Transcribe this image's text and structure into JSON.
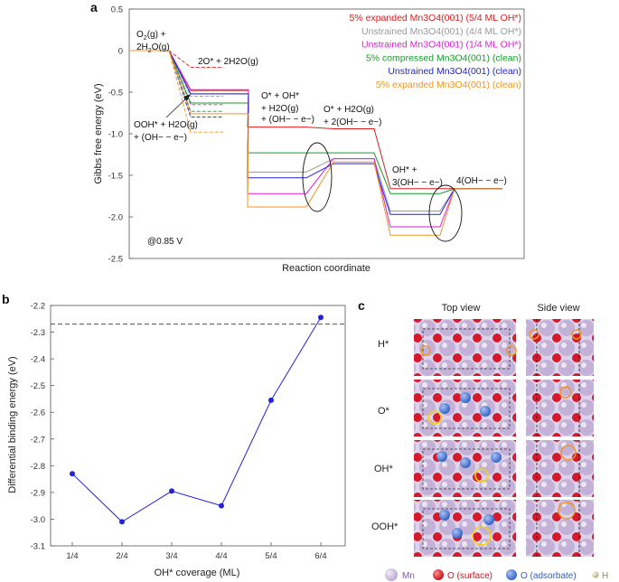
{
  "panel_labels": {
    "a": "a",
    "b": "b",
    "c": "c"
  },
  "chart_data": [
    {
      "type": "line",
      "title": "",
      "xlabel": "Reaction coordinate",
      "ylabel": "Gibbs free energy (eV)",
      "ylim": [
        -2.5,
        0.5
      ],
      "yticks": [
        "0.5",
        "0",
        "-0.5",
        "-1.0",
        "-1.5",
        "-2.0",
        "-2.5"
      ],
      "steps": [
        "O2(g) + 2H2O(g)",
        "OOH* + H2O(g) + (OH− − e−)",
        "O* + OH* + H2O(g) + (OH− − e−)",
        "O* + H2O(g) + 2(OH− − e−)",
        "OH* + 3(OH− − e−)",
        "4(OH− − e−)"
      ],
      "potential_label": "@0.85 V",
      "annotations": {
        "start": [
          "O",
          "(g) +",
          "2H",
          "O(g)"
        ],
        "side": "2O* + 2H2O(g)",
        "ooh": [
          "OOH* + H",
          "O(g)",
          "+ (OH",
          "−",
          " − e",
          "−",
          ")"
        ],
        "ooh_lines": [
          "OOH* + H2O(g)",
          "+ (OH− − e−)"
        ],
        "ooh_plain": [
          "OOH* + H",
          "O(g)"
        ],
        "ooh_line2": "+ (OH",
        "step3": [
          "O* + OH*",
          "+ H2O(g)",
          "+ (OH− − e−)"
        ],
        "step4": [
          "O* + H2O(g)",
          "+ 2(OH− − e−)"
        ],
        "step5": [
          "OH* +",
          "3(OH− − e−)"
        ],
        "step6": "4(OH− − e−)"
      },
      "series": [
        {
          "name": "5% expanded Mn3O4(001) (5/4 ML OH*)",
          "color": "#e31a1c",
          "dash": false,
          "values": [
            0,
            -0.48,
            -0.92,
            -0.94,
            -1.66,
            -1.66
          ]
        },
        {
          "name": "Unstrained Mn3O4(001) (4/4 ML OH*)",
          "color": "#999999",
          "dash": false,
          "values": [
            0,
            -0.52,
            -1.46,
            -1.3,
            -1.93,
            -1.66
          ]
        },
        {
          "name": "Unstrained Mn3O4(001) (1/4 ML OH*)",
          "color": "#e21ad6",
          "dash": false,
          "values": [
            0,
            -0.47,
            -1.72,
            -1.3,
            -2.12,
            -1.66
          ]
        },
        {
          "name": "5% compressed Mn3O4(001) (clean)",
          "color": "#159d2a",
          "dash": false,
          "values": [
            0,
            -0.63,
            -1.23,
            -1.23,
            -1.72,
            -1.66
          ]
        },
        {
          "name": "Unstrained Mn3O4(001) (clean)",
          "color": "#2222dd",
          "dash": false,
          "values": [
            0,
            -0.52,
            -1.53,
            -1.36,
            -1.97,
            -1.66
          ]
        },
        {
          "name": "5% expanded Mn3O4(001) (clean)",
          "color": "#f39423",
          "dash": false,
          "values": [
            0,
            -0.76,
            -1.88,
            -1.34,
            -2.22,
            -1.66
          ]
        }
      ],
      "dashed_values": [
        -0.2,
        -0.55,
        -0.65,
        -0.73,
        -0.8,
        -0.98
      ]
    },
    {
      "type": "line",
      "title": "",
      "xlabel": "OH* coverage (ML)",
      "ylabel": "Differential binding energy (eV)",
      "categories": [
        "1/4",
        "2/4",
        "3/4",
        "4/4",
        "5/4",
        "6/4"
      ],
      "values": [
        -2.83,
        -3.01,
        -2.895,
        -2.95,
        -2.555,
        -2.245
      ],
      "ylim": [
        -3.1,
        -2.2
      ],
      "yticks": [
        "-2.2",
        "-2.3",
        "-2.4",
        "-2.5",
        "-2.6",
        "-2.7",
        "-2.8",
        "-2.9",
        "-3.0",
        "-3.1"
      ],
      "reference_line": -2.27,
      "color": "#2222dd"
    }
  ],
  "panel_c": {
    "col_headers": [
      "Top view",
      "Side view"
    ],
    "rows": [
      "H*",
      "O*",
      "OH*",
      "OOH*"
    ],
    "legend": [
      {
        "label": "Mn",
        "color": "#c9b3dc"
      },
      {
        "label": "O (surface)",
        "color": "#e3191c"
      },
      {
        "label": "O (adsorbate)",
        "color": "#4a78d4"
      },
      {
        "label": "H",
        "color": "#d6d4a0"
      }
    ]
  }
}
